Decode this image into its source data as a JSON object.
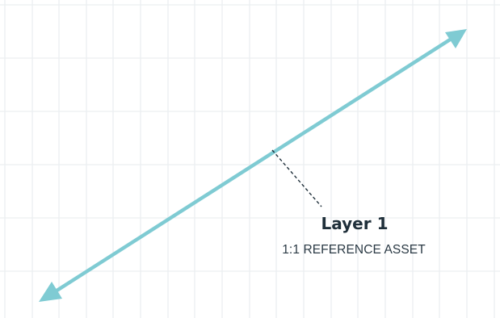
{
  "annotation": {
    "title": "Layer 1",
    "subtitle": "1:1 REFERENCE ASSET"
  },
  "colors": {
    "background": "#ffffff",
    "grid": "#eceff1",
    "arrow": "#7fcbd3",
    "leader": "#1f2f3a",
    "text": "#1f2f3a"
  },
  "icons": {
    "start_arrowhead": "arrowhead-down-left",
    "end_arrowhead": "arrowhead-up-right"
  }
}
